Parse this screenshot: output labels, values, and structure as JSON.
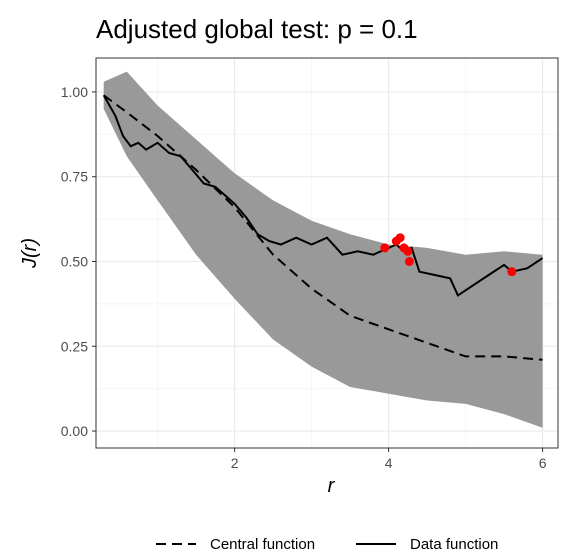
{
  "chart_data": {
    "type": "line",
    "title": "Adjusted global test: p = 0.1",
    "xlabel": "r",
    "ylabel": "J(r)",
    "xlim": [
      0.2,
      6.2
    ],
    "ylim": [
      -0.05,
      1.1
    ],
    "x_ticks": [
      2,
      4,
      6
    ],
    "x_tick_labels": [
      "2",
      "4",
      "6"
    ],
    "y_ticks": [
      0,
      0.25,
      0.5,
      0.75,
      1.0
    ],
    "y_tick_labels": [
      "0.00",
      "0.25",
      "0.50",
      "0.75",
      "1.00"
    ],
    "grid": true,
    "legend_position": "bottom",
    "colors": {
      "panel": "#ffffff",
      "grid_major": "#ebebeb",
      "grid_minor": "#f5f5f5",
      "envelope": "#999999",
      "line": "#000000",
      "points": "#ff0000"
    },
    "envelope": {
      "x": [
        0.3,
        0.6,
        1.0,
        1.5,
        2.0,
        2.5,
        3.0,
        3.5,
        4.0,
        4.5,
        5.0,
        5.5,
        6.0
      ],
      "upper": [
        1.03,
        1.06,
        0.96,
        0.86,
        0.76,
        0.68,
        0.62,
        0.58,
        0.55,
        0.54,
        0.52,
        0.53,
        0.52
      ],
      "lower": [
        0.95,
        0.81,
        0.68,
        0.52,
        0.39,
        0.27,
        0.19,
        0.13,
        0.11,
        0.09,
        0.08,
        0.05,
        0.01
      ]
    },
    "series": [
      {
        "name": "Central function",
        "style": "dashed",
        "x": [
          0.3,
          0.6,
          1.0,
          1.5,
          2.0,
          2.5,
          3.0,
          3.5,
          4.0,
          4.5,
          5.0,
          5.5,
          6.0
        ],
        "y": [
          0.99,
          0.94,
          0.87,
          0.77,
          0.66,
          0.52,
          0.42,
          0.34,
          0.3,
          0.26,
          0.22,
          0.22,
          0.21
        ]
      },
      {
        "name": "Data function",
        "style": "solid",
        "x": [
          0.3,
          0.45,
          0.55,
          0.65,
          0.75,
          0.85,
          1.0,
          1.15,
          1.3,
          1.45,
          1.6,
          1.75,
          1.9,
          2.0,
          2.15,
          2.3,
          2.45,
          2.6,
          2.8,
          3.0,
          3.2,
          3.4,
          3.6,
          3.8,
          4.0,
          4.1,
          4.2,
          4.3,
          4.4,
          4.6,
          4.8,
          4.9,
          5.1,
          5.3,
          5.5,
          5.6,
          5.8,
          6.0
        ],
        "y": [
          0.99,
          0.93,
          0.87,
          0.84,
          0.85,
          0.83,
          0.85,
          0.82,
          0.81,
          0.77,
          0.73,
          0.72,
          0.69,
          0.67,
          0.63,
          0.58,
          0.56,
          0.55,
          0.57,
          0.55,
          0.57,
          0.52,
          0.53,
          0.52,
          0.54,
          0.55,
          0.53,
          0.54,
          0.47,
          0.46,
          0.45,
          0.4,
          0.43,
          0.46,
          0.49,
          0.47,
          0.48,
          0.51
        ]
      }
    ],
    "points": {
      "x": [
        3.95,
        4.1,
        4.15,
        4.2,
        4.25,
        4.27,
        5.6
      ],
      "y": [
        0.54,
        0.56,
        0.57,
        0.54,
        0.53,
        0.5,
        0.47
      ]
    },
    "legend": [
      {
        "label": "Central function",
        "style": "dashed"
      },
      {
        "label": "Data function",
        "style": "solid"
      }
    ]
  }
}
